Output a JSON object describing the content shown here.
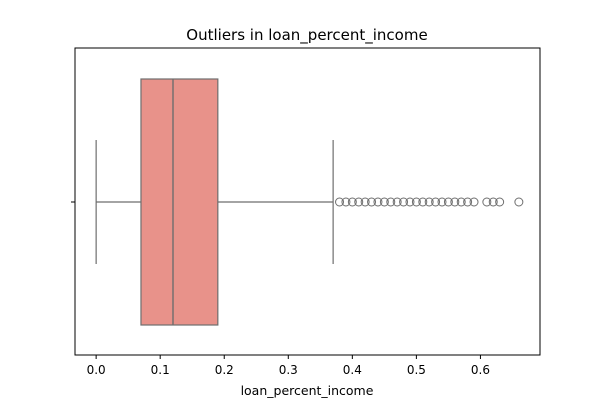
{
  "chart_data": {
    "type": "boxplot",
    "title": "Outliers in loan_percent_income",
    "xlabel": "loan_percent_income",
    "ylabel": "",
    "xlim": [
      -0.033,
      0.693
    ],
    "xticks": [
      0.0,
      0.1,
      0.2,
      0.3,
      0.4,
      0.5,
      0.6
    ],
    "xtick_labels": [
      "0.0",
      "0.1",
      "0.2",
      "0.3",
      "0.4",
      "0.5",
      "0.6"
    ],
    "box": {
      "whisker_low": 0.0,
      "q1": 0.07,
      "median": 0.12,
      "q3": 0.19,
      "whisker_high": 0.37
    },
    "outliers": [
      0.38,
      0.39,
      0.4,
      0.41,
      0.42,
      0.43,
      0.44,
      0.45,
      0.46,
      0.47,
      0.48,
      0.49,
      0.5,
      0.51,
      0.52,
      0.53,
      0.54,
      0.55,
      0.56,
      0.57,
      0.58,
      0.59,
      0.61,
      0.62,
      0.63,
      0.66
    ],
    "grid": false,
    "colors": {
      "box_fill": "#e8928a",
      "line": "#6e6e6e",
      "axis": "#000000"
    }
  }
}
